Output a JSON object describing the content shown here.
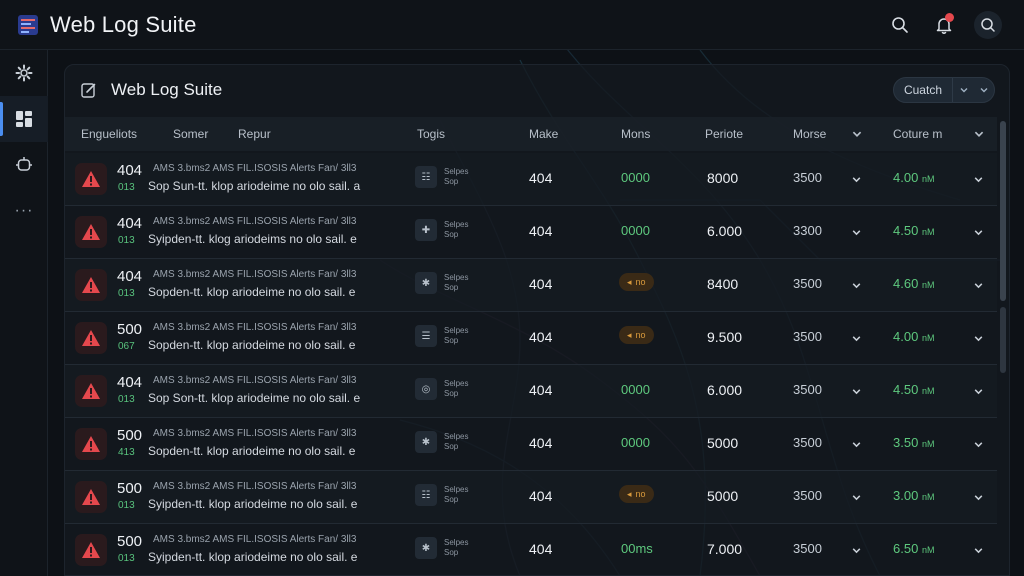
{
  "app": {
    "title": "Web Log Suite"
  },
  "topbar": {
    "icons": [
      "search-icon",
      "bell-icon",
      "search-icon"
    ]
  },
  "siderail": {
    "icons": [
      "gear-icon",
      "dashboard-icon",
      "plugin-icon",
      "more-icon"
    ],
    "more": "···"
  },
  "panel": {
    "title": "Web Log Suite",
    "switch_label": "Cuatch"
  },
  "table": {
    "headers": {
      "col1": "Engueliots",
      "col2": "Somer",
      "col3": "Repur",
      "col4": "Togis",
      "col5": "Make",
      "col6": "Mons",
      "col7": "Periote",
      "col8": "Morse",
      "col9": "Coture m"
    },
    "rows": [
      {
        "code": "404",
        "sub": "013",
        "msg_top": "AMS 3.bms2 AMS FIL.ISOSIS  Alerts Fan/ 3ll3",
        "msg": "Sop Sun-tt. klop ariodeime no olo sail. a",
        "tag_icon": "☷",
        "tag": "Selpes\nSop",
        "make": "404",
        "mons": "0000",
        "mons_warn": false,
        "per": "8000",
        "more": "3500",
        "cut": "4.00",
        "cut_unit": "nM"
      },
      {
        "code": "404",
        "sub": "013",
        "msg_top": "AMS 3.bms2 AMS FIL.ISOSIS  Alerts Fan/ 3ll3",
        "msg": "Syipden-tt. klog ariodeims no olo sail. e",
        "tag_icon": "✚",
        "tag": "Selpes\nSop",
        "make": "404",
        "mons": "0000",
        "mons_warn": false,
        "per": "6.000",
        "more": "3300",
        "cut": "4.50",
        "cut_unit": "nM"
      },
      {
        "code": "404",
        "sub": "013",
        "msg_top": "AMS 3.bms2 AMS FIL.ISOSIS  Alerts Fan/ 3ll3",
        "msg": "Sopden-tt. klop ariodeime no olo sail. e",
        "tag_icon": "✱",
        "tag": "Selpes\nSop",
        "make": "404",
        "mons": "no",
        "mons_warn": true,
        "per": "8400",
        "more": "3500",
        "cut": "4.60",
        "cut_unit": "nM"
      },
      {
        "code": "500",
        "sub": "067",
        "msg_top": "AMS 3.bms2 AMS FIL.ISOSIS  Alerts Fan/ 3ll3",
        "msg": "Sopden-tt. klop ariodeime no olo sail. e",
        "tag_icon": "☰",
        "tag": "Selpes\nSop",
        "make": "404",
        "mons": "no",
        "mons_warn": true,
        "per": "9.500",
        "more": "3500",
        "cut": "4.00",
        "cut_unit": "nM"
      },
      {
        "code": "404",
        "sub": "013",
        "msg_top": "AMS 3.bms2 AMS FIL.ISOSIS  Alerts Fan/ 3ll3",
        "msg": "Sop Son-tt. klop ariodeime no olo sail. e",
        "tag_icon": "◎",
        "tag": "Selpes\nSop",
        "make": "404",
        "mons": "0000",
        "mons_warn": false,
        "per": "6.000",
        "more": "3500",
        "cut": "4.50",
        "cut_unit": "nM"
      },
      {
        "code": "500",
        "sub": "413",
        "msg_top": "AMS 3.bms2 AMS FIL.ISOSIS  Alerts Fan/ 3ll3",
        "msg": "Sopden-tt. klop ariodeime no olo sail. e",
        "tag_icon": "✱",
        "tag": "Selpes\nSop",
        "make": "404",
        "mons": "0000",
        "mons_warn": false,
        "per": "5000",
        "more": "3500",
        "cut": "3.50",
        "cut_unit": "nM"
      },
      {
        "code": "500",
        "sub": "013",
        "msg_top": "AMS 3.bms2 AMS FIL.ISOSIS  Alerts Fan/ 3ll3",
        "msg": "Syipden-tt. klop ariodeime no olo sail. e",
        "tag_icon": "☷",
        "tag": "Selpes\nSop",
        "make": "404",
        "mons": "no",
        "mons_warn": true,
        "per": "5000",
        "more": "3500",
        "cut": "3.00",
        "cut_unit": "nM"
      },
      {
        "code": "500",
        "sub": "013",
        "msg_top": "AMS 3.bms2 AMS FIL.ISOSIS  Alerts Fan/ 3ll3",
        "msg": "Syipden-tt. klop ariodeime no olo sail. e",
        "tag_icon": "✱",
        "tag": "Selpes\nSop",
        "make": "404",
        "mons": "00ms",
        "mons_warn": false,
        "per": "7.000",
        "more": "3500",
        "cut": "6.50",
        "cut_unit": "nM"
      }
    ]
  },
  "colors": {
    "accent": "#4b8ef0",
    "error": "#e5484d",
    "success": "#5ec97e",
    "warning": "#d99a3c"
  }
}
